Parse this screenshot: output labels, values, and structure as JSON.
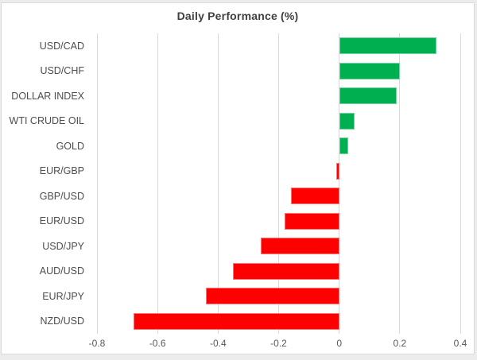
{
  "page": {
    "background_color": "#ececec"
  },
  "frame": {
    "border_color": "#d9d9d9",
    "background_color": "#ffffff"
  },
  "colors": {
    "positive_bar": "#00b050",
    "negative_bar": "#ff0000",
    "gridline": "#d9d9d9",
    "title_text": "#404040",
    "category_text": "#4d4d4d",
    "tick_text": "#595959"
  },
  "chart_data": {
    "type": "bar",
    "orientation": "horizontal",
    "title": "Daily Performance (%)",
    "xlabel": "",
    "ylabel": "",
    "categories": [
      "USD/CAD",
      "USD/CHF",
      "DOLLAR INDEX",
      "WTI CRUDE OIL",
      "GOLD",
      "EUR/GBP",
      "GBP/USD",
      "EUR/USD",
      "USD/JPY",
      "AUD/USD",
      "EUR/JPY",
      "NZD/USD"
    ],
    "values": [
      0.32,
      0.2,
      0.19,
      0.05,
      0.03,
      -0.01,
      -0.16,
      -0.18,
      -0.26,
      -0.35,
      -0.44,
      -0.68
    ],
    "xlim": [
      -0.8,
      0.4
    ],
    "ticks": [
      -0.8,
      -0.6,
      -0.4,
      -0.2,
      0,
      0.2,
      0.4
    ],
    "tick_labels": [
      "-0.8",
      "-0.6",
      "-0.4",
      "-0.2",
      "0",
      "0.2",
      "0.4"
    ],
    "grid": true,
    "legend": false,
    "positive_color": "#00b050",
    "negative_color": "#ff0000"
  }
}
